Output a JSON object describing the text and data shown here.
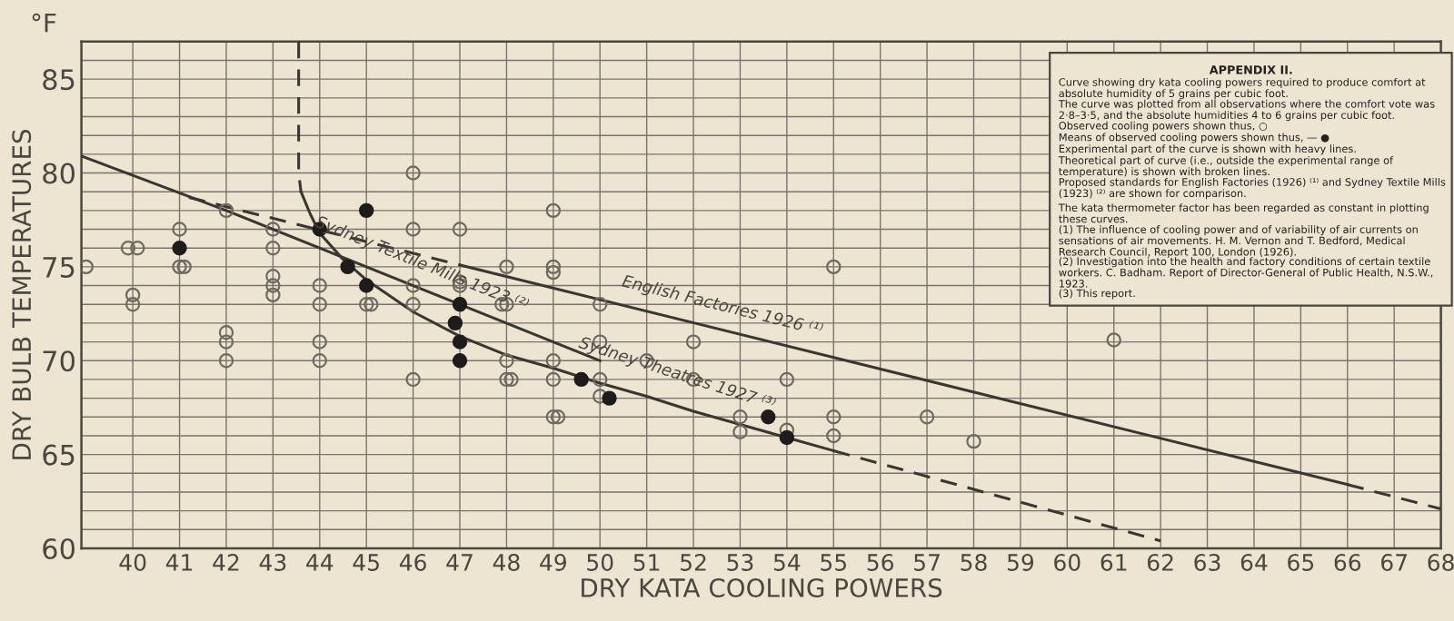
{
  "chart_data": {
    "type": "scatter",
    "title": "APPENDIX II.",
    "xlabel": "DRY KATA COOLING POWERS",
    "ylabel": "DRY BULB TEMPERATURES",
    "xlim": [
      38.9,
      68
    ],
    "ylim": [
      60,
      87
    ],
    "xticks": [
      40,
      41,
      42,
      43,
      44,
      45,
      46,
      47,
      48,
      49,
      50,
      51,
      52,
      53,
      54,
      55,
      56,
      57,
      58,
      59,
      60,
      61,
      62,
      63,
      64,
      65,
      66,
      67,
      68
    ],
    "yticks": [
      60,
      {
        "value": 61,
        "label": null
      },
      {
        "value": 62,
        "label": null
      },
      {
        "value": 63,
        "label": null
      },
      {
        "value": 64,
        "label": null
      },
      65,
      {
        "value": 66,
        "label": null
      },
      {
        "value": 67,
        "label": null
      },
      {
        "value": 68,
        "label": null
      },
      {
        "value": 69,
        "label": null
      },
      70,
      {
        "value": 71,
        "label": null
      },
      {
        "value": 72,
        "label": null
      },
      {
        "value": 73,
        "label": null
      },
      {
        "value": 74,
        "label": null
      },
      75,
      {
        "value": 76,
        "label": null
      },
      {
        "value": 77,
        "label": null
      },
      {
        "value": 78,
        "label": null
      },
      {
        "value": 79,
        "label": null
      },
      80,
      {
        "value": 81,
        "label": null
      },
      {
        "value": 82,
        "label": null
      },
      {
        "value": 83,
        "label": null
      },
      {
        "value": 84,
        "label": null
      },
      85,
      {
        "value": 86,
        "label": null
      }
    ],
    "grid": true,
    "series": [
      {
        "marker": "circle",
        "color": "#6e6a62",
        "x": [
          39,
          39.9,
          40.1,
          40,
          40,
          41,
          41,
          41.1,
          42,
          42,
          42,
          42,
          43,
          43,
          43,
          43,
          43,
          44,
          44,
          44,
          44,
          45,
          45.1,
          46,
          46,
          46,
          46,
          46,
          47,
          47,
          47,
          48,
          47.9,
          48,
          48,
          48,
          48.1,
          49,
          49,
          49,
          49,
          49,
          49,
          49.1,
          50,
          50,
          50,
          50,
          51,
          52,
          52,
          53,
          53,
          54,
          54,
          55,
          55,
          55,
          57,
          58,
          61
        ],
        "values": [
          75,
          76,
          76,
          73.5,
          73,
          77,
          75,
          75,
          78,
          71.5,
          71,
          70,
          77,
          76,
          74.5,
          74,
          73.5,
          74,
          73,
          71,
          70,
          73,
          73,
          80,
          77,
          74,
          73,
          69,
          77,
          74.2,
          74,
          75,
          73,
          73,
          70,
          69,
          69,
          78,
          75,
          74.7,
          70,
          69,
          67,
          67,
          73,
          71,
          69,
          68.1,
          70,
          71,
          69,
          67,
          66.2,
          69,
          66.3,
          75,
          67,
          66,
          67,
          65.7,
          71.1
        ]
      },
      {
        "marker": "circle",
        "color": "#1e1c1a",
        "x": [
          41,
          44,
          44.6,
          45,
          45,
          47,
          46.9,
          47,
          47,
          49.6,
          50.2,
          53.6,
          54
        ],
        "values": [
          76,
          77,
          75,
          78,
          74,
          73,
          72,
          71,
          70,
          69,
          68,
          67,
          65.9
        ]
      },
      {
        "type": "line",
        "line_style": "dashed",
        "color": "#3a3733",
        "x": [
          43.55,
          43.55,
          43.6
        ],
        "values": [
          87,
          80,
          79
        ]
      },
      {
        "type": "line",
        "line_style": "solid",
        "color": "#3a3733",
        "x": [
          43.6,
          43.8,
          44,
          44.5,
          45,
          46,
          47,
          48,
          49,
          50,
          51,
          52,
          53,
          54,
          55
        ],
        "values": [
          79,
          77.8,
          76.8,
          75.4,
          74.3,
          72.6,
          71.3,
          70.3,
          69.6,
          68.8,
          68.1,
          67.3,
          66.6,
          65.9,
          65.2
        ]
      },
      {
        "type": "line",
        "line_style": "dashed",
        "color": "#3a3733",
        "x": [
          55,
          62
        ],
        "values": [
          65.2,
          60.4
        ]
      },
      {
        "type": "line",
        "line_style": "solid",
        "color": "#3a3733",
        "x": [
          38.9,
          42,
          50
        ],
        "values": [
          80.9,
          78,
          70
        ]
      },
      {
        "type": "line",
        "line_style": "dashed",
        "color": "#3a3733",
        "x": [
          41.2,
          47
        ],
        "values": [
          78.7,
          75.1
        ]
      },
      {
        "type": "line",
        "line_style": "solid",
        "color": "#3a3733",
        "x": [
          47,
          66
        ],
        "values": [
          75.1,
          63.4
        ]
      },
      {
        "type": "line",
        "line_style": "dashed",
        "color": "#3a3733",
        "x": [
          66,
          68
        ],
        "values": [
          63.4,
          62.1
        ]
      }
    ],
    "annotations": [
      "°F",
      "Curve showing dry kata cooling powers required to produce comfort at absolute humidity of 5 grains per cubic foot.",
      "The curve was plotted from all observations where the comfort vote was 2·8–3·5, and the absolute humidities 4 to 6 grains per cubic foot.",
      "Observed cooling powers shown thus, ○",
      "Means of observed cooling powers shown thus, — ●",
      "Experimental part of the curve is shown with heavy lines.",
      "Theoretical part of curve (i.e., outside the experimental range of temperature) is shown with broken lines.",
      "Proposed standards for English Factories (1926) ⁽¹⁾ and Sydney Textile Mills (1923) ⁽²⁾ are shown for comparison.",
      "The kata thermometer factor has been regarded as constant in plotting these curves.",
      "(1) The influence of cooling power and of variability of air currents on sensations of air movements. H. M. Vernon and T. Bedford, Medical Research Council, Report 100, London (1926).",
      "(2) Investigation into the health and factory conditions of certain textile workers. C. Badham. Report of Director-General of Public Health, N.S.W., 1923.",
      "(3) This report.",
      {
        "text": "Sydney Textile Mills 1923 ⁽²⁾",
        "x": 46,
        "y": 74
      },
      {
        "text": "Sydney Theatres 1927 ⁽³⁾",
        "x": 51.5,
        "y": 68.1
      },
      {
        "text": "English Factories 1926 ⁽¹⁾",
        "x": 52.5,
        "y": 71.7
      }
    ]
  }
}
